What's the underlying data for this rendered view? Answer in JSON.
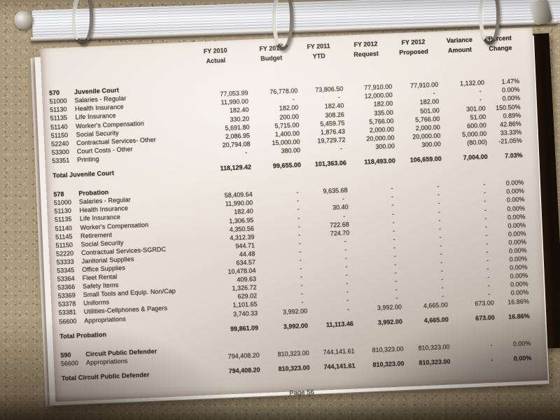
{
  "page": {
    "footer": "Page 56",
    "columns": [
      {
        "l1": "FY 2010",
        "l2": "Actual"
      },
      {
        "l1": "FY 2011",
        "l2": "Budget"
      },
      {
        "l1": "FY 2011",
        "l2": "YTD"
      },
      {
        "l1": "FY 2012",
        "l2": "Request"
      },
      {
        "l1": "FY 2012",
        "l2": "Proposed"
      },
      {
        "l1": "Variance",
        "l2": "Amount"
      },
      {
        "l1": "Percent",
        "l2": "Change"
      }
    ],
    "sections": [
      {
        "code": "570",
        "name": "Juvenile Court",
        "rows": [
          {
            "code": "51000",
            "label": "Salaries - Regular",
            "values": [
              "77,053.99",
              "76,778.00",
              "73,806.50",
              "77,910.00",
              "77,910.00",
              "1,132.00",
              "1.47%"
            ]
          },
          {
            "code": "51130",
            "label": "Health Insurance",
            "values": [
              "11,990.00",
              "-",
              "-",
              "12,000.00",
              "-",
              "-",
              "0.00%"
            ]
          },
          {
            "code": "51135",
            "label": "Life Insurance",
            "values": [
              "182.40",
              "182.00",
              "182.40",
              "182.00",
              "182.00",
              "-",
              "0.00%"
            ]
          },
          {
            "code": "51140",
            "label": "Worker's Compensation",
            "values": [
              "330.20",
              "200.00",
              "308.26",
              "335.00",
              "501.00",
              "301.00",
              "150.50%"
            ]
          },
          {
            "code": "51150",
            "label": "Social Security",
            "values": [
              "5,691.80",
              "5,715.00",
              "5,459.75",
              "5,766.00",
              "5,766.00",
              "51.00",
              "0.89%"
            ]
          },
          {
            "code": "52240",
            "label": "Contractual Services- Other",
            "values": [
              "2,086.95",
              "1,400.00",
              "1,876.43",
              "2,000.00",
              "2,000.00",
              "600.00",
              "42.86%"
            ]
          },
          {
            "code": "53300",
            "label": "Court Costs - Other",
            "values": [
              "20,794.08",
              "15,000.00",
              "19,729.72",
              "20,000.00",
              "20,000.00",
              "5,000.00",
              "33.33%"
            ]
          },
          {
            "code": "53351",
            "label": "Printing",
            "values": [
              "-",
              "380.00",
              "-",
              "300.00",
              "300.00",
              "(80.00)",
              "-21.05%"
            ]
          }
        ],
        "total": {
          "label": "Total Juvenile Court",
          "values": [
            "118,129.42",
            "99,655.00",
            "101,363.06",
            "118,493.00",
            "106,659.00",
            "7,004.00",
            "7.03%"
          ]
        }
      },
      {
        "code": "578",
        "name": "Probation",
        "rows": [
          {
            "code": "51000",
            "label": "Salaries - Regular",
            "values": [
              "58,409.64",
              "-",
              "9,635.68",
              "-",
              "-",
              "-",
              "0.00%"
            ]
          },
          {
            "code": "51130",
            "label": "Health Insurance",
            "values": [
              "11,990.00",
              "-",
              "-",
              "-",
              "-",
              "-",
              "0.00%"
            ]
          },
          {
            "code": "51135",
            "label": "Life Insurance",
            "values": [
              "182.40",
              "-",
              "30.40",
              "-",
              "-",
              "-",
              "0.00%"
            ]
          },
          {
            "code": "51140",
            "label": "Worker's Compensation",
            "values": [
              "1,306.95",
              "-",
              "-",
              "-",
              "-",
              "-",
              "0.00%"
            ]
          },
          {
            "code": "51145",
            "label": "Retirement",
            "values": [
              "4,350.56",
              "-",
              "722.68",
              "-",
              "-",
              "-",
              "0.00%"
            ]
          },
          {
            "code": "51150",
            "label": "Social Security",
            "values": [
              "4,312.39",
              "-",
              "724.70",
              "-",
              "-",
              "-",
              "0.00%"
            ]
          },
          {
            "code": "52220",
            "label": "Contractual Services-SGRDC",
            "values": [
              "944.71",
              "-",
              "-",
              "-",
              "-",
              "-",
              "0.00%"
            ]
          },
          {
            "code": "53333",
            "label": "Janitorial Supplies",
            "values": [
              "44.48",
              "-",
              "-",
              "-",
              "-",
              "-",
              "0.00%"
            ]
          },
          {
            "code": "53345",
            "label": "Office Supplies",
            "values": [
              "634.57",
              "-",
              "-",
              "-",
              "-",
              "-",
              "0.00%"
            ]
          },
          {
            "code": "53364",
            "label": "Fleet Rental",
            "values": [
              "10,478.04",
              "-",
              "-",
              "-",
              "-",
              "-",
              "0.00%"
            ]
          },
          {
            "code": "53366",
            "label": "Safety Items",
            "values": [
              "409.63",
              "-",
              "-",
              "-",
              "-",
              "-",
              "0.00%"
            ]
          },
          {
            "code": "53369",
            "label": "Small Tools and Equip. Non/Cap",
            "values": [
              "1,326.72",
              "-",
              "-",
              "-",
              "-",
              "-",
              "0.00%"
            ]
          },
          {
            "code": "53378",
            "label": "Uniforms",
            "values": [
              "629.02",
              "-",
              "-",
              "-",
              "-",
              "-",
              "0.00%"
            ]
          },
          {
            "code": "53381",
            "label": "Utilities-Cellphones & Pagers",
            "values": [
              "1,101.65",
              "-",
              "-",
              "-",
              "-",
              "-",
              "0.00%"
            ]
          },
          {
            "code": "56600",
            "label": "Appropriations",
            "values": [
              "3,740.33",
              "3,992.00",
              "-",
              "3,992.00",
              "4,665.00",
              "673.00",
              "16.86%"
            ]
          }
        ],
        "total": {
          "label": "Total Probation",
          "values": [
            "99,861.09",
            "3,992.00",
            "11,113.46",
            "3,992.00",
            "4,665.00",
            "673.00",
            "16.86%"
          ]
        }
      },
      {
        "code": "590",
        "name": "Circuit Public Defender",
        "rows": [
          {
            "code": "56600",
            "label": "Appropriations",
            "values": [
              "794,408.20",
              "810,323.00",
              "744,141.61",
              "810,323.00",
              "810,323.00",
              "-",
              "0.00%"
            ]
          }
        ],
        "total": {
          "label": "Total Circuit Public Defender",
          "values": [
            "794,408.20",
            "810,323.00",
            "744,141.61",
            "810,323.00",
            "810,323.00",
            "-",
            "0.00%"
          ]
        }
      }
    ]
  }
}
